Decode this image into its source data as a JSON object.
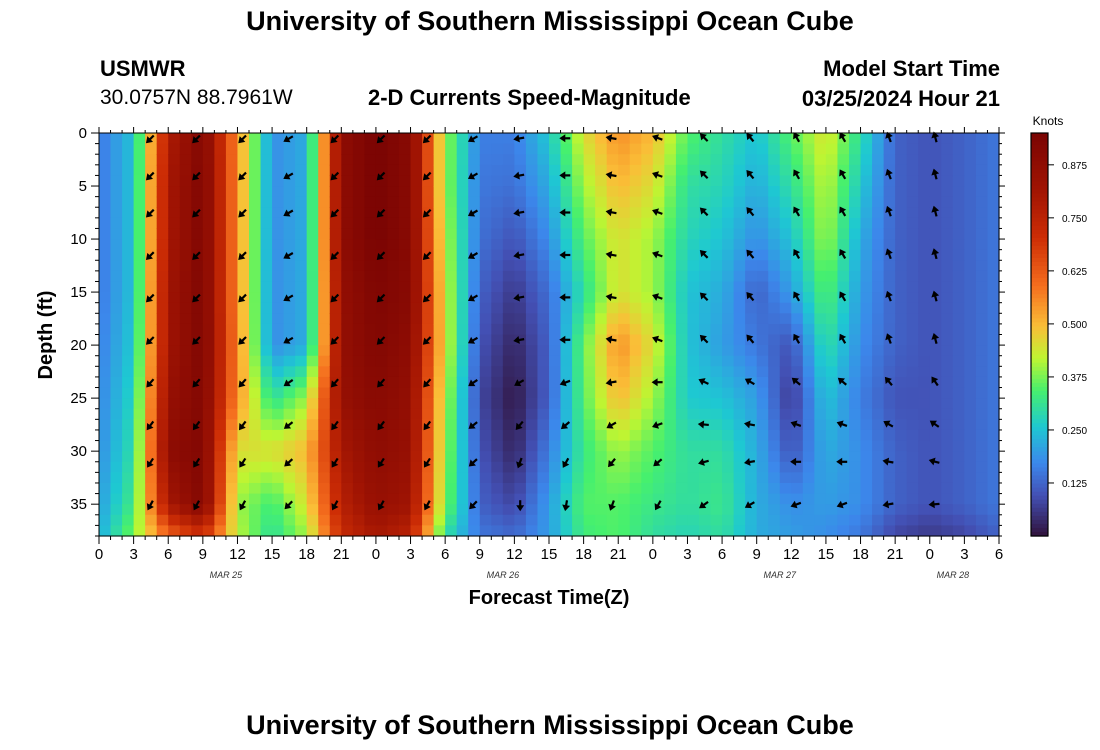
{
  "header": {
    "title": "University of Southern Mississippi Ocean Cube",
    "station": "USMWR",
    "coords": "30.0757N  88.7961W",
    "plot_title": "2-D Currents Speed-Magnitude",
    "model_label": "Model Start Time",
    "model_time": "03/25/2024 Hour 21"
  },
  "footer": {
    "title": "University of Southern Mississippi Ocean Cube"
  },
  "chart_data": {
    "type": "heatmap",
    "title": "2-D Currents Speed-Magnitude",
    "xlabel": "Forecast Time(Z)",
    "ylabel": "Depth (ft)",
    "x_unit": "hours since 2024-03-25 00Z",
    "xlim": [
      0,
      78
    ],
    "ylim": [
      0,
      38
    ],
    "x_ticks": [
      0,
      3,
      6,
      9,
      12,
      15,
      18,
      21,
      24,
      27,
      30,
      33,
      36,
      39,
      42,
      45,
      48,
      51,
      54,
      57,
      60,
      63,
      66,
      69,
      72,
      75,
      78
    ],
    "x_tick_labels": [
      "0",
      "3",
      "6",
      "9",
      "12",
      "15",
      "18",
      "21",
      "0",
      "3",
      "6",
      "9",
      "12",
      "15",
      "18",
      "21",
      "0",
      "3",
      "6",
      "9",
      "12",
      "15",
      "18",
      "21",
      "0",
      "3",
      "6"
    ],
    "date_labels": [
      {
        "label": "MAR 25",
        "hour": 11
      },
      {
        "label": "MAR 26",
        "hour": 35
      },
      {
        "label": "MAR 27",
        "hour": 59
      },
      {
        "label": "MAR 28",
        "hour": 74
      }
    ],
    "y_ticks": [
      0,
      5,
      10,
      15,
      20,
      25,
      30,
      35
    ],
    "colorbar": {
      "label": "Knots",
      "range": [
        0,
        0.95
      ],
      "ticks": [
        "0.875",
        "0.750",
        "0.625",
        "0.500",
        "0.375",
        "0.250",
        "0.125"
      ],
      "tick_values": [
        0.875,
        0.75,
        0.625,
        0.5,
        0.375,
        0.25,
        0.125
      ]
    },
    "speed_profile_by_time": [
      {
        "t": 0,
        "speed": [
          0.15,
          0.15,
          0.15,
          0.15,
          0.16,
          0.17,
          0.18,
          0.2,
          0.22
        ]
      },
      {
        "t": 3,
        "speed": [
          0.25,
          0.25,
          0.25,
          0.25,
          0.26,
          0.28,
          0.3,
          0.33,
          0.38
        ]
      },
      {
        "t": 6,
        "speed": [
          0.78,
          0.8,
          0.8,
          0.82,
          0.82,
          0.85,
          0.88,
          0.8,
          0.6
        ]
      },
      {
        "t": 9,
        "speed": [
          0.92,
          0.93,
          0.93,
          0.93,
          0.93,
          0.92,
          0.92,
          0.92,
          0.7
        ]
      },
      {
        "t": 12,
        "speed": [
          0.55,
          0.55,
          0.55,
          0.55,
          0.56,
          0.55,
          0.45,
          0.4,
          0.42
        ]
      },
      {
        "t": 15,
        "speed": [
          0.18,
          0.18,
          0.18,
          0.18,
          0.18,
          0.3,
          0.45,
          0.33,
          0.3
        ]
      },
      {
        "t": 18,
        "speed": [
          0.22,
          0.22,
          0.22,
          0.22,
          0.22,
          0.4,
          0.5,
          0.45,
          0.4
        ]
      },
      {
        "t": 21,
        "speed": [
          0.88,
          0.88,
          0.88,
          0.86,
          0.86,
          0.85,
          0.8,
          0.76,
          0.72
        ]
      },
      {
        "t": 24,
        "speed": [
          0.95,
          0.95,
          0.95,
          0.93,
          0.92,
          0.9,
          0.88,
          0.85,
          0.8
        ]
      },
      {
        "t": 27,
        "speed": [
          0.9,
          0.9,
          0.9,
          0.9,
          0.88,
          0.86,
          0.85,
          0.82,
          0.75
        ]
      },
      {
        "t": 30,
        "speed": [
          0.4,
          0.4,
          0.42,
          0.44,
          0.45,
          0.42,
          0.4,
          0.38,
          0.3
        ]
      },
      {
        "t": 33,
        "speed": [
          0.16,
          0.15,
          0.14,
          0.12,
          0.1,
          0.08,
          0.1,
          0.12,
          0.15
        ]
      },
      {
        "t": 36,
        "speed": [
          0.16,
          0.14,
          0.1,
          0.06,
          0.03,
          0.01,
          0.03,
          0.08,
          0.13
        ]
      },
      {
        "t": 39,
        "speed": [
          0.26,
          0.22,
          0.18,
          0.14,
          0.12,
          0.12,
          0.16,
          0.2,
          0.2
        ]
      },
      {
        "t": 42,
        "speed": [
          0.45,
          0.4,
          0.35,
          0.3,
          0.36,
          0.35,
          0.32,
          0.35,
          0.33
        ]
      },
      {
        "t": 45,
        "speed": [
          0.55,
          0.5,
          0.45,
          0.45,
          0.55,
          0.5,
          0.4,
          0.35,
          0.35
        ]
      },
      {
        "t": 48,
        "speed": [
          0.5,
          0.45,
          0.4,
          0.4,
          0.45,
          0.4,
          0.35,
          0.32,
          0.3
        ]
      },
      {
        "t": 51,
        "speed": [
          0.35,
          0.3,
          0.28,
          0.25,
          0.25,
          0.26,
          0.3,
          0.3,
          0.28
        ]
      },
      {
        "t": 54,
        "speed": [
          0.3,
          0.28,
          0.25,
          0.22,
          0.2,
          0.25,
          0.3,
          0.32,
          0.3
        ]
      },
      {
        "t": 57,
        "speed": [
          0.25,
          0.22,
          0.18,
          0.12,
          0.15,
          0.2,
          0.22,
          0.22,
          0.22
        ]
      },
      {
        "t": 60,
        "speed": [
          0.35,
          0.3,
          0.25,
          0.2,
          0.1,
          0.06,
          0.1,
          0.18,
          0.2
        ]
      },
      {
        "t": 63,
        "speed": [
          0.45,
          0.42,
          0.4,
          0.35,
          0.3,
          0.25,
          0.22,
          0.2,
          0.18
        ]
      },
      {
        "t": 66,
        "speed": [
          0.3,
          0.26,
          0.22,
          0.2,
          0.18,
          0.16,
          0.18,
          0.18,
          0.15
        ]
      },
      {
        "t": 69,
        "speed": [
          0.12,
          0.12,
          0.12,
          0.12,
          0.12,
          0.1,
          0.12,
          0.12,
          0.08
        ]
      },
      {
        "t": 72,
        "speed": [
          0.1,
          0.1,
          0.1,
          0.1,
          0.1,
          0.1,
          0.1,
          0.1,
          0.06
        ]
      },
      {
        "t": 75,
        "speed": [
          0.12,
          0.12,
          0.12,
          0.12,
          0.12,
          0.12,
          0.12,
          0.12,
          0.08
        ]
      },
      {
        "t": 78,
        "speed": [
          0.15,
          0.15,
          0.15,
          0.15,
          0.15,
          0.15,
          0.15,
          0.15,
          0.12
        ]
      }
    ],
    "profile_depths": [
      0,
      5,
      10,
      15,
      20,
      25,
      30,
      35,
      38
    ],
    "vectors": {
      "times": [
        4.5,
        8.5,
        12.5,
        16.5,
        20.5,
        24.5,
        28.5,
        32.5,
        36.5,
        40.5,
        44.5,
        48.5,
        52.5,
        56.5,
        60.5,
        64.5,
        68.5,
        72.5
      ],
      "depths": [
        0.5,
        4,
        7.5,
        11.5,
        15.5,
        19.5,
        23.5,
        27.5,
        31,
        35
      ],
      "angle_by_time": [
        135,
        135,
        135,
        150,
        135,
        135,
        135,
        150,
        170,
        180,
        190,
        200,
        225,
        230,
        240,
        240,
        250,
        255
      ],
      "angle_by_depth_shift": [
        0,
        0,
        0,
        0,
        0,
        0,
        -20,
        -40,
        -60,
        -80
      ]
    }
  }
}
